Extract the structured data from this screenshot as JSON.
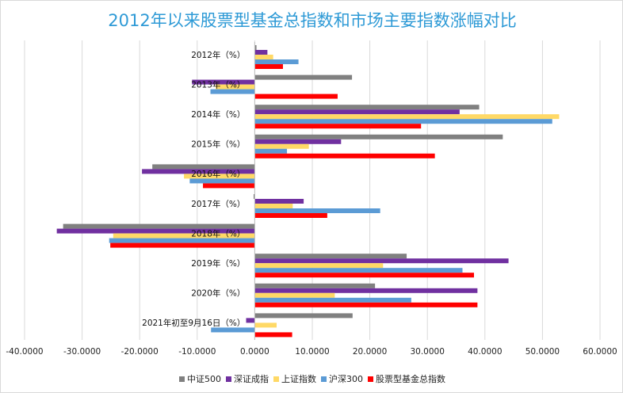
{
  "chart_data": {
    "type": "bar",
    "orientation": "horizontal",
    "title": "2012年以来股票型基金总指数和市场主要指数涨幅对比",
    "categories": [
      "2012年（%）",
      "2013年（%）",
      "2014年（%）",
      "2015年（%）",
      "2016年（%）",
      "2017年（%）",
      "2018年（%）",
      "2019年（%）",
      "2020年（%）",
      "2021年初至9月16日（%）"
    ],
    "series": [
      {
        "name": "中证500",
        "color": "#808080",
        "values": [
          0.3,
          16.9,
          39.0,
          43.1,
          -17.8,
          -0.2,
          -33.3,
          26.4,
          20.9,
          17.0
        ]
      },
      {
        "name": "深证成指",
        "color": "#7030a0",
        "values": [
          2.2,
          -10.9,
          35.6,
          15.0,
          -19.6,
          8.5,
          -34.4,
          44.1,
          38.7,
          -1.5
        ]
      },
      {
        "name": "上证指数",
        "color": "#ffd966",
        "values": [
          3.2,
          -6.8,
          52.9,
          9.4,
          -12.3,
          6.6,
          -24.6,
          22.3,
          13.9,
          3.8
        ]
      },
      {
        "name": "沪深300",
        "color": "#5b9bd5",
        "values": [
          7.6,
          -7.7,
          51.7,
          5.6,
          -11.3,
          21.8,
          -25.3,
          36.1,
          27.2,
          -7.6
        ]
      },
      {
        "name": "股票型基金总指数",
        "color": "#ff0000",
        "values": [
          4.9,
          14.4,
          28.9,
          31.3,
          -9.0,
          12.6,
          -25.1,
          38.1,
          38.7,
          6.5
        ]
      }
    ],
    "xlim": [
      -40,
      60
    ],
    "xticks": [
      "-40.0000",
      "-30.0000",
      "-20.0000",
      "-10.0000",
      "0.0000",
      "10.0000",
      "20.0000",
      "30.0000",
      "40.0000",
      "50.0000",
      "60.0000"
    ],
    "grid": true,
    "legend": "bottom"
  }
}
